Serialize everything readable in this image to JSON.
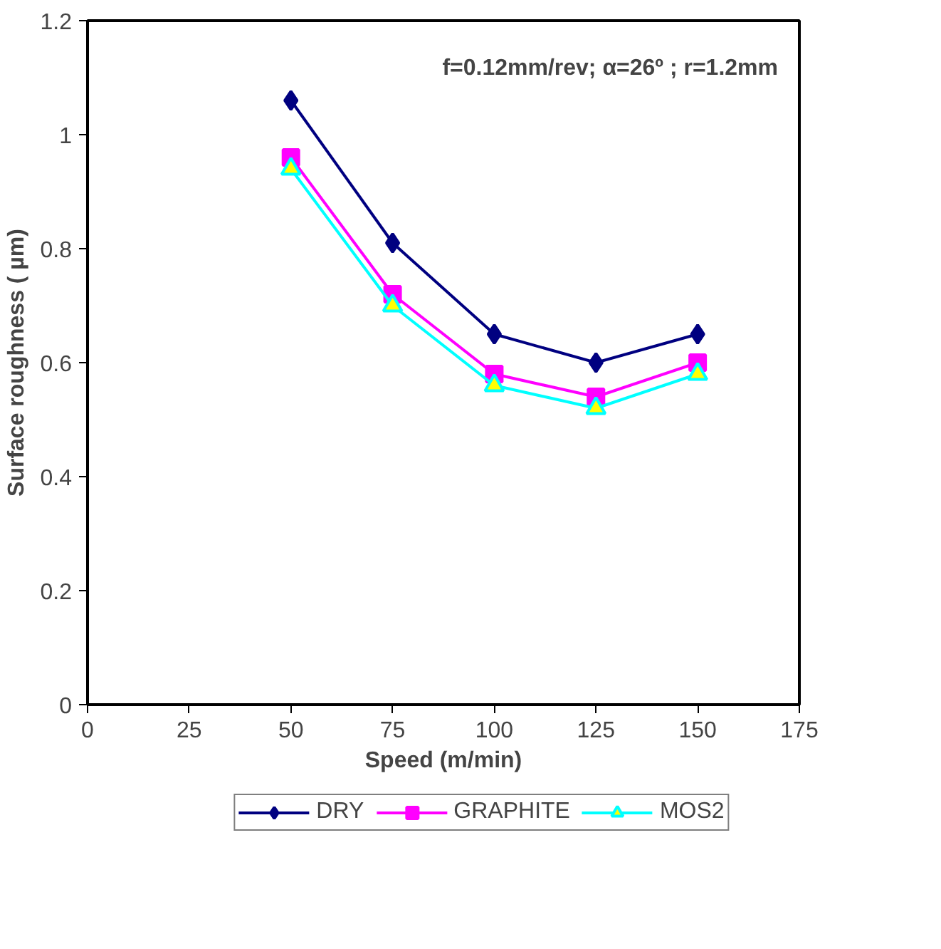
{
  "chart_data": {
    "type": "line",
    "xlabel": "Speed (m/min)",
    "ylabel": "Surface roughness ( µm)",
    "annotations": [
      "f=0.12mm/rev; α=26º ; r=1.2mm"
    ],
    "x": [
      50,
      75,
      100,
      125,
      150
    ],
    "series": [
      {
        "name": "DRY",
        "color": "#000080",
        "marker": "diamond",
        "values": [
          1.06,
          0.81,
          0.65,
          0.6,
          0.65
        ]
      },
      {
        "name": "GRAPHITE",
        "color": "#ff00ff",
        "marker": "square",
        "values": [
          0.96,
          0.72,
          0.58,
          0.54,
          0.6
        ]
      },
      {
        "name": "MOS2",
        "color": "#00ffff",
        "marker": "triangle",
        "values": [
          0.94,
          0.7,
          0.56,
          0.52,
          0.58
        ]
      }
    ],
    "xlim": [
      0,
      175
    ],
    "xticks": [
      0,
      25,
      50,
      75,
      100,
      125,
      150,
      175
    ],
    "ylim": [
      0,
      1.2
    ],
    "yticks": [
      0,
      0.2,
      0.4,
      0.6,
      0.8,
      1,
      1.2
    ],
    "grid": false,
    "legend": "bottom",
    "line_style": "solid"
  }
}
